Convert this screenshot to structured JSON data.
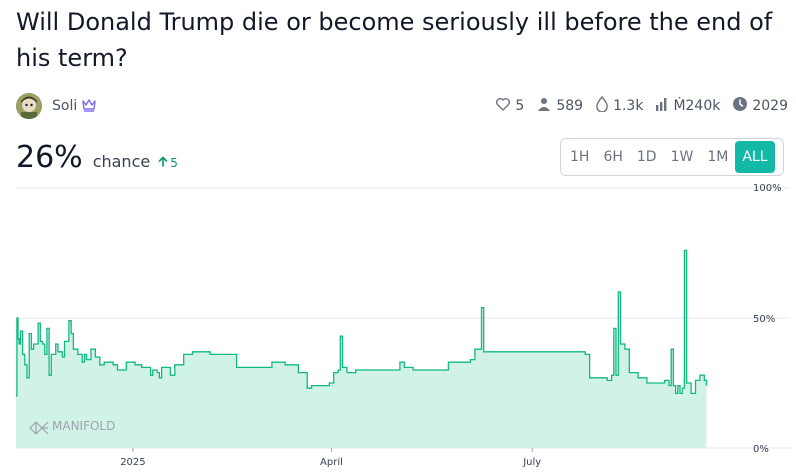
{
  "market": {
    "title": "Will Donald Trump die or become seriously ill before the end of his term?",
    "author": "Soli",
    "probability": "26%",
    "chance_label": "chance",
    "change": "5"
  },
  "stats": {
    "likes": "5",
    "traders": "589",
    "comments": "1.3k",
    "volume": "Ṁ240k",
    "close": "2029"
  },
  "ranges": [
    "1H",
    "6H",
    "1D",
    "1W",
    "1M",
    "ALL"
  ],
  "active_range": "ALL",
  "watermark": "MANIFOLD",
  "colors": {
    "line": "#10b981",
    "fill": "#d1f2e6",
    "accent": "#14b8a6"
  },
  "chart_data": {
    "type": "area",
    "ylim": [
      0,
      100
    ],
    "y_ticks": [
      {
        "value": 100,
        "label": "100%"
      },
      {
        "value": 50,
        "label": "50%"
      },
      {
        "value": 0,
        "label": "0%"
      }
    ],
    "xlim": [
      0,
      330
    ],
    "x_ticks": [
      {
        "value": 53,
        "label": "2025"
      },
      {
        "value": 143,
        "label": "April"
      },
      {
        "value": 234,
        "label": "July"
      }
    ],
    "x_unit": "day index from start of chart",
    "points": [
      [
        0,
        20
      ],
      [
        0.4,
        50
      ],
      [
        0.9,
        42
      ],
      [
        1.4,
        40
      ],
      [
        2,
        45
      ],
      [
        3,
        36
      ],
      [
        4,
        32
      ],
      [
        5,
        27
      ],
      [
        6,
        44
      ],
      [
        7,
        38
      ],
      [
        8,
        40
      ],
      [
        10,
        48
      ],
      [
        11,
        41
      ],
      [
        12,
        40
      ],
      [
        13,
        36
      ],
      [
        14,
        46
      ],
      [
        15,
        28
      ],
      [
        16,
        36
      ],
      [
        18,
        40
      ],
      [
        19,
        37
      ],
      [
        21,
        35
      ],
      [
        22,
        41
      ],
      [
        24,
        49
      ],
      [
        25,
        44
      ],
      [
        26,
        38
      ],
      [
        28,
        36
      ],
      [
        30,
        33
      ],
      [
        31,
        36
      ],
      [
        32,
        34
      ],
      [
        34,
        38
      ],
      [
        36,
        35
      ],
      [
        38,
        32
      ],
      [
        40,
        33
      ],
      [
        44,
        32
      ],
      [
        46,
        30
      ],
      [
        50,
        33
      ],
      [
        54,
        32
      ],
      [
        57,
        31
      ],
      [
        60,
        31
      ],
      [
        61,
        28
      ],
      [
        62,
        30
      ],
      [
        64,
        29
      ],
      [
        65,
        27
      ],
      [
        66,
        31
      ],
      [
        70,
        28
      ],
      [
        72,
        32
      ],
      [
        76,
        36
      ],
      [
        80,
        37
      ],
      [
        84,
        37
      ],
      [
        88,
        36
      ],
      [
        92,
        36
      ],
      [
        96,
        36
      ],
      [
        100,
        31
      ],
      [
        104,
        31
      ],
      [
        110,
        31
      ],
      [
        116,
        33
      ],
      [
        122,
        32
      ],
      [
        128,
        29
      ],
      [
        130,
        29
      ],
      [
        132,
        23
      ],
      [
        134,
        24
      ],
      [
        140,
        24
      ],
      [
        142,
        25
      ],
      [
        144,
        29
      ],
      [
        146,
        30
      ],
      [
        147,
        43
      ],
      [
        148,
        31
      ],
      [
        150,
        29
      ],
      [
        154,
        30
      ],
      [
        158,
        30
      ],
      [
        162,
        30
      ],
      [
        168,
        30
      ],
      [
        172,
        30
      ],
      [
        174,
        33
      ],
      [
        176,
        31
      ],
      [
        180,
        30
      ],
      [
        186,
        30
      ],
      [
        190,
        30
      ],
      [
        196,
        33
      ],
      [
        202,
        33
      ],
      [
        206,
        34
      ],
      [
        208,
        38
      ],
      [
        210,
        38
      ],
      [
        211,
        54
      ],
      [
        212,
        37
      ],
      [
        220,
        37
      ],
      [
        230,
        37
      ],
      [
        240,
        37
      ],
      [
        250,
        37
      ],
      [
        256,
        37
      ],
      [
        258,
        36
      ],
      [
        260,
        27
      ],
      [
        262,
        27
      ],
      [
        266,
        27
      ],
      [
        268,
        26
      ],
      [
        270,
        28
      ],
      [
        271,
        46
      ],
      [
        272,
        28
      ],
      [
        273,
        60
      ],
      [
        274,
        40
      ],
      [
        276,
        38
      ],
      [
        278,
        29
      ],
      [
        282,
        27
      ],
      [
        286,
        25
      ],
      [
        290,
        25
      ],
      [
        294,
        26
      ],
      [
        296,
        24
      ],
      [
        297,
        38
      ],
      [
        298,
        24
      ],
      [
        299,
        21
      ],
      [
        300,
        24
      ],
      [
        301,
        21
      ],
      [
        302,
        23
      ],
      [
        303,
        76
      ],
      [
        304,
        25
      ],
      [
        306,
        21
      ],
      [
        308,
        26
      ],
      [
        310,
        28
      ],
      [
        312,
        26
      ],
      [
        313,
        24
      ]
    ]
  }
}
